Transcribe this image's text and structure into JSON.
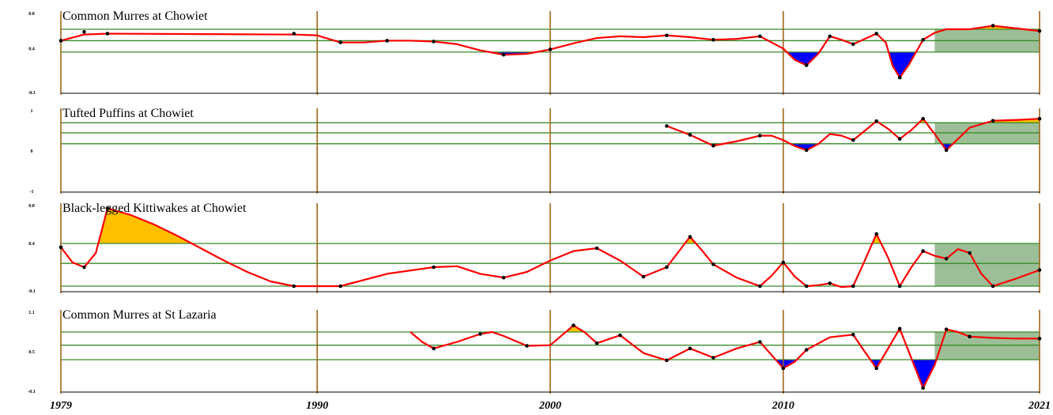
{
  "colors": {
    "line": "#ff0000",
    "above_fill": "#ffc000",
    "below_fill": "#0000ff",
    "band_lines": "#3a8a2a",
    "year_lines": "#a0651a",
    "recent_shade": "#9cbf97",
    "points": "#000000",
    "baseline": "#000000"
  },
  "shaded_region_start_year": 2016.5,
  "x_axis": {
    "xlim": [
      1979,
      2021
    ],
    "ticks": [
      {
        "label": "1979",
        "year": 1979
      },
      {
        "label": "1990",
        "year": 1990
      },
      {
        "label": "2000",
        "year": 2000
      },
      {
        "label": "2010",
        "year": 2010
      },
      {
        "label": "2021",
        "year": 2021
      }
    ]
  },
  "chart_data": [
    {
      "type": "line",
      "title": "Common Murres at Chowiet",
      "ylim": [
        -0.1,
        0.8
      ],
      "yticks": [
        {
          "label": "0.8",
          "value": 0.8
        },
        {
          "label": "0.4",
          "value": 0.4
        },
        {
          "label": "-0.1",
          "value": -0.1
        }
      ],
      "bands": [
        0.62,
        0.49,
        0.36
      ],
      "points": [
        [
          1979,
          0.49
        ],
        [
          1980,
          0.59
        ],
        [
          1981,
          0.57
        ],
        [
          1989,
          0.57
        ],
        [
          1991,
          0.47
        ],
        [
          1993,
          0.49
        ],
        [
          1995,
          0.48
        ],
        [
          1998,
          0.33
        ],
        [
          2000,
          0.39
        ],
        [
          2005,
          0.55
        ],
        [
          2007,
          0.5
        ],
        [
          2009,
          0.54
        ],
        [
          2011,
          0.21
        ],
        [
          2012,
          0.54
        ],
        [
          2013,
          0.45
        ],
        [
          2014,
          0.57
        ],
        [
          2015,
          0.07
        ],
        [
          2016,
          0.5
        ],
        [
          2019,
          0.66
        ],
        [
          2021,
          0.6
        ]
      ],
      "curve": [
        [
          1979,
          0.49
        ],
        [
          1980,
          0.56
        ],
        [
          1981,
          0.57
        ],
        [
          1989,
          0.56
        ],
        [
          1990,
          0.55
        ],
        [
          1991,
          0.47
        ],
        [
          1992,
          0.47
        ],
        [
          1993,
          0.49
        ],
        [
          1994,
          0.49
        ],
        [
          1995,
          0.48
        ],
        [
          1996,
          0.45
        ],
        [
          1997,
          0.38
        ],
        [
          1998,
          0.33
        ],
        [
          1999,
          0.34
        ],
        [
          2000,
          0.39
        ],
        [
          2001,
          0.46
        ],
        [
          2002,
          0.52
        ],
        [
          2003,
          0.54
        ],
        [
          2004,
          0.53
        ],
        [
          2005,
          0.55
        ],
        [
          2006,
          0.53
        ],
        [
          2007,
          0.5
        ],
        [
          2008,
          0.51
        ],
        [
          2009,
          0.54
        ],
        [
          2009.5,
          0.47
        ],
        [
          2010,
          0.4
        ],
        [
          2010.5,
          0.27
        ],
        [
          2011,
          0.21
        ],
        [
          2011.5,
          0.34
        ],
        [
          2012,
          0.54
        ],
        [
          2012.5,
          0.5
        ],
        [
          2013,
          0.45
        ],
        [
          2013.5,
          0.51
        ],
        [
          2014,
          0.57
        ],
        [
          2014.4,
          0.47
        ],
        [
          2014.7,
          0.2
        ],
        [
          2015,
          0.07
        ],
        [
          2015.4,
          0.22
        ],
        [
          2016,
          0.5
        ],
        [
          2016.5,
          0.58
        ],
        [
          2017,
          0.62
        ],
        [
          2018,
          0.62
        ],
        [
          2019,
          0.66
        ],
        [
          2020,
          0.63
        ],
        [
          2021,
          0.6
        ]
      ]
    },
    {
      "type": "line",
      "title": "Tufted Puffins at Chowiet",
      "ylim": [
        -1,
        1
      ],
      "yticks": [
        {
          "label": "1",
          "value": 1
        },
        {
          "label": "0",
          "value": 0
        },
        {
          "label": "-1",
          "value": -1
        }
      ],
      "bands": [
        0.7,
        0.45,
        0.18
      ],
      "points": [
        [
          2005,
          0.62
        ],
        [
          2006,
          0.4
        ],
        [
          2007,
          0.13
        ],
        [
          2009,
          0.38
        ],
        [
          2011,
          0.02
        ],
        [
          2013,
          0.27
        ],
        [
          2014,
          0.74
        ],
        [
          2015,
          0.3
        ],
        [
          2016,
          0.8
        ],
        [
          2017,
          0.02
        ],
        [
          2019,
          0.75
        ],
        [
          2021,
          0.8
        ]
      ],
      "curve": [
        [
          2005,
          0.62
        ],
        [
          2006,
          0.4
        ],
        [
          2007,
          0.13
        ],
        [
          2008,
          0.24
        ],
        [
          2009,
          0.38
        ],
        [
          2009.5,
          0.38
        ],
        [
          2010,
          0.27
        ],
        [
          2010.5,
          0.12
        ],
        [
          2011,
          0.02
        ],
        [
          2011.5,
          0.17
        ],
        [
          2012,
          0.42
        ],
        [
          2012.5,
          0.38
        ],
        [
          2013,
          0.27
        ],
        [
          2013.5,
          0.5
        ],
        [
          2014,
          0.74
        ],
        [
          2014.5,
          0.55
        ],
        [
          2015,
          0.3
        ],
        [
          2015.5,
          0.52
        ],
        [
          2016,
          0.8
        ],
        [
          2016.5,
          0.42
        ],
        [
          2017,
          0.02
        ],
        [
          2017.5,
          0.3
        ],
        [
          2018,
          0.58
        ],
        [
          2019,
          0.75
        ],
        [
          2020,
          0.77
        ],
        [
          2021,
          0.8
        ]
      ]
    },
    {
      "type": "line",
      "title": "Black-legged Kittiwakes at Chowiet",
      "ylim": [
        -0.1,
        0.8
      ],
      "yticks": [
        {
          "label": "0.8",
          "value": 0.8
        },
        {
          "label": "0.4",
          "value": 0.4
        },
        {
          "label": "-0.1",
          "value": -0.1
        }
      ],
      "bands": [
        0.4,
        0.19,
        -0.05
      ],
      "points": [
        [
          1979,
          0.36
        ],
        [
          1980,
          0.15
        ],
        [
          1981,
          0.77
        ],
        [
          1989,
          -0.05
        ],
        [
          1991,
          -0.05
        ],
        [
          1995,
          0.15
        ],
        [
          1998,
          0.04
        ],
        [
          2002,
          0.35
        ],
        [
          2004,
          0.05
        ],
        [
          2005,
          0.15
        ],
        [
          2006,
          0.47
        ],
        [
          2007,
          0.18
        ],
        [
          2009,
          -0.05
        ],
        [
          2010,
          0.2
        ],
        [
          2011,
          -0.05
        ],
        [
          2012,
          -0.02
        ],
        [
          2013,
          -0.05
        ],
        [
          2014,
          0.5
        ],
        [
          2015,
          -0.05
        ],
        [
          2016,
          0.32
        ],
        [
          2017,
          0.24
        ],
        [
          2018,
          0.3
        ],
        [
          2019,
          -0.05
        ],
        [
          2021,
          0.12
        ]
      ],
      "curve": [
        [
          1979,
          0.36
        ],
        [
          1979.5,
          0.2
        ],
        [
          1980,
          0.15
        ],
        [
          1980.5,
          0.3
        ],
        [
          1981,
          0.77
        ],
        [
          1982,
          0.7
        ],
        [
          1983,
          0.6
        ],
        [
          1984,
          0.48
        ],
        [
          1985,
          0.35
        ],
        [
          1986,
          0.22
        ],
        [
          1987,
          0.1
        ],
        [
          1988,
          0.0
        ],
        [
          1989,
          -0.05
        ],
        [
          1991,
          -0.05
        ],
        [
          1993,
          0.08
        ],
        [
          1995,
          0.15
        ],
        [
          1996,
          0.16
        ],
        [
          1997,
          0.08
        ],
        [
          1998,
          0.04
        ],
        [
          1999,
          0.1
        ],
        [
          2000,
          0.22
        ],
        [
          2001,
          0.32
        ],
        [
          2002,
          0.35
        ],
        [
          2003,
          0.22
        ],
        [
          2004,
          0.05
        ],
        [
          2005,
          0.15
        ],
        [
          2006,
          0.47
        ],
        [
          2006.5,
          0.33
        ],
        [
          2007,
          0.18
        ],
        [
          2008,
          0.04
        ],
        [
          2009,
          -0.05
        ],
        [
          2009.5,
          0.06
        ],
        [
          2010,
          0.2
        ],
        [
          2010.5,
          0.05
        ],
        [
          2011,
          -0.05
        ],
        [
          2011.5,
          -0.04
        ],
        [
          2012,
          -0.02
        ],
        [
          2012.5,
          -0.06
        ],
        [
          2013,
          -0.05
        ],
        [
          2013.5,
          0.22
        ],
        [
          2014,
          0.5
        ],
        [
          2014.5,
          0.25
        ],
        [
          2015,
          -0.05
        ],
        [
          2015.5,
          0.15
        ],
        [
          2016,
          0.32
        ],
        [
          2016.5,
          0.27
        ],
        [
          2017,
          0.24
        ],
        [
          2017.5,
          0.34
        ],
        [
          2018,
          0.3
        ],
        [
          2018.5,
          0.08
        ],
        [
          2019,
          -0.05
        ],
        [
          2020,
          0.03
        ],
        [
          2021,
          0.12
        ]
      ]
    },
    {
      "type": "line",
      "title": "Common Murres at St Lazaria",
      "ylim": [
        -0.1,
        1.1
      ],
      "yticks": [
        {
          "label": "1.1",
          "value": 1.1
        },
        {
          "label": "0.5",
          "value": 0.5
        },
        {
          "label": "-0.1",
          "value": -0.1
        }
      ],
      "bands": [
        0.8,
        0.6,
        0.38
      ],
      "points": [
        [
          1995,
          0.55
        ],
        [
          1997,
          0.77
        ],
        [
          1999,
          0.59
        ],
        [
          2001,
          0.9
        ],
        [
          2002,
          0.63
        ],
        [
          2003,
          0.75
        ],
        [
          2005,
          0.37
        ],
        [
          2006,
          0.55
        ],
        [
          2007,
          0.41
        ],
        [
          2009,
          0.65
        ],
        [
          2010,
          0.25
        ],
        [
          2011,
          0.53
        ],
        [
          2013,
          0.76
        ],
        [
          2014,
          0.25
        ],
        [
          2015,
          0.85
        ],
        [
          2016,
          -0.05
        ],
        [
          2017,
          0.84
        ],
        [
          2018,
          0.73
        ],
        [
          2021,
          0.7
        ]
      ],
      "curve": [
        [
          1994,
          0.8
        ],
        [
          1994.5,
          0.65
        ],
        [
          1995,
          0.55
        ],
        [
          1996,
          0.65
        ],
        [
          1997,
          0.77
        ],
        [
          1997.5,
          0.8
        ],
        [
          1998,
          0.74
        ],
        [
          1999,
          0.59
        ],
        [
          2000,
          0.6
        ],
        [
          2000.5,
          0.75
        ],
        [
          2001,
          0.9
        ],
        [
          2001.5,
          0.79
        ],
        [
          2002,
          0.63
        ],
        [
          2003,
          0.75
        ],
        [
          2004,
          0.48
        ],
        [
          2005,
          0.37
        ],
        [
          2006,
          0.55
        ],
        [
          2007,
          0.41
        ],
        [
          2008,
          0.55
        ],
        [
          2009,
          0.65
        ],
        [
          2009.5,
          0.45
        ],
        [
          2010,
          0.25
        ],
        [
          2010.5,
          0.35
        ],
        [
          2011,
          0.53
        ],
        [
          2012,
          0.72
        ],
        [
          2013,
          0.76
        ],
        [
          2013.5,
          0.5
        ],
        [
          2014,
          0.25
        ],
        [
          2014.5,
          0.55
        ],
        [
          2015,
          0.85
        ],
        [
          2015.5,
          0.4
        ],
        [
          2016,
          -0.05
        ],
        [
          2016.5,
          0.3
        ],
        [
          2017,
          0.84
        ],
        [
          2017.5,
          0.8
        ],
        [
          2018,
          0.73
        ],
        [
          2019,
          0.71
        ],
        [
          2020,
          0.7
        ],
        [
          2021,
          0.7
        ]
      ]
    }
  ]
}
